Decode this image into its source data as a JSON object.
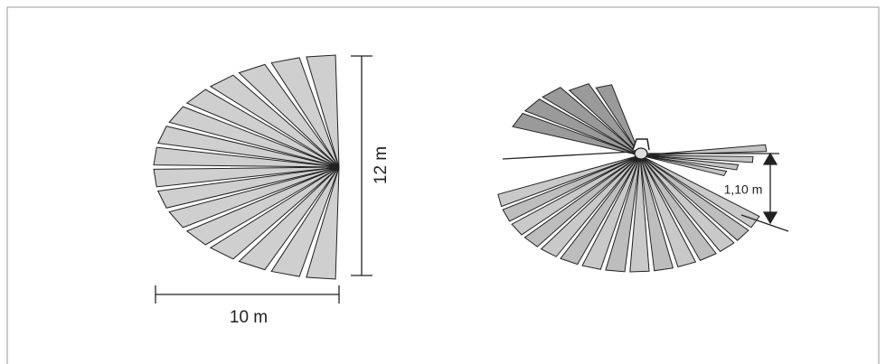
{
  "labels": {
    "height": "12 m",
    "width": "10 m",
    "mount_height": "1,10 m"
  }
}
